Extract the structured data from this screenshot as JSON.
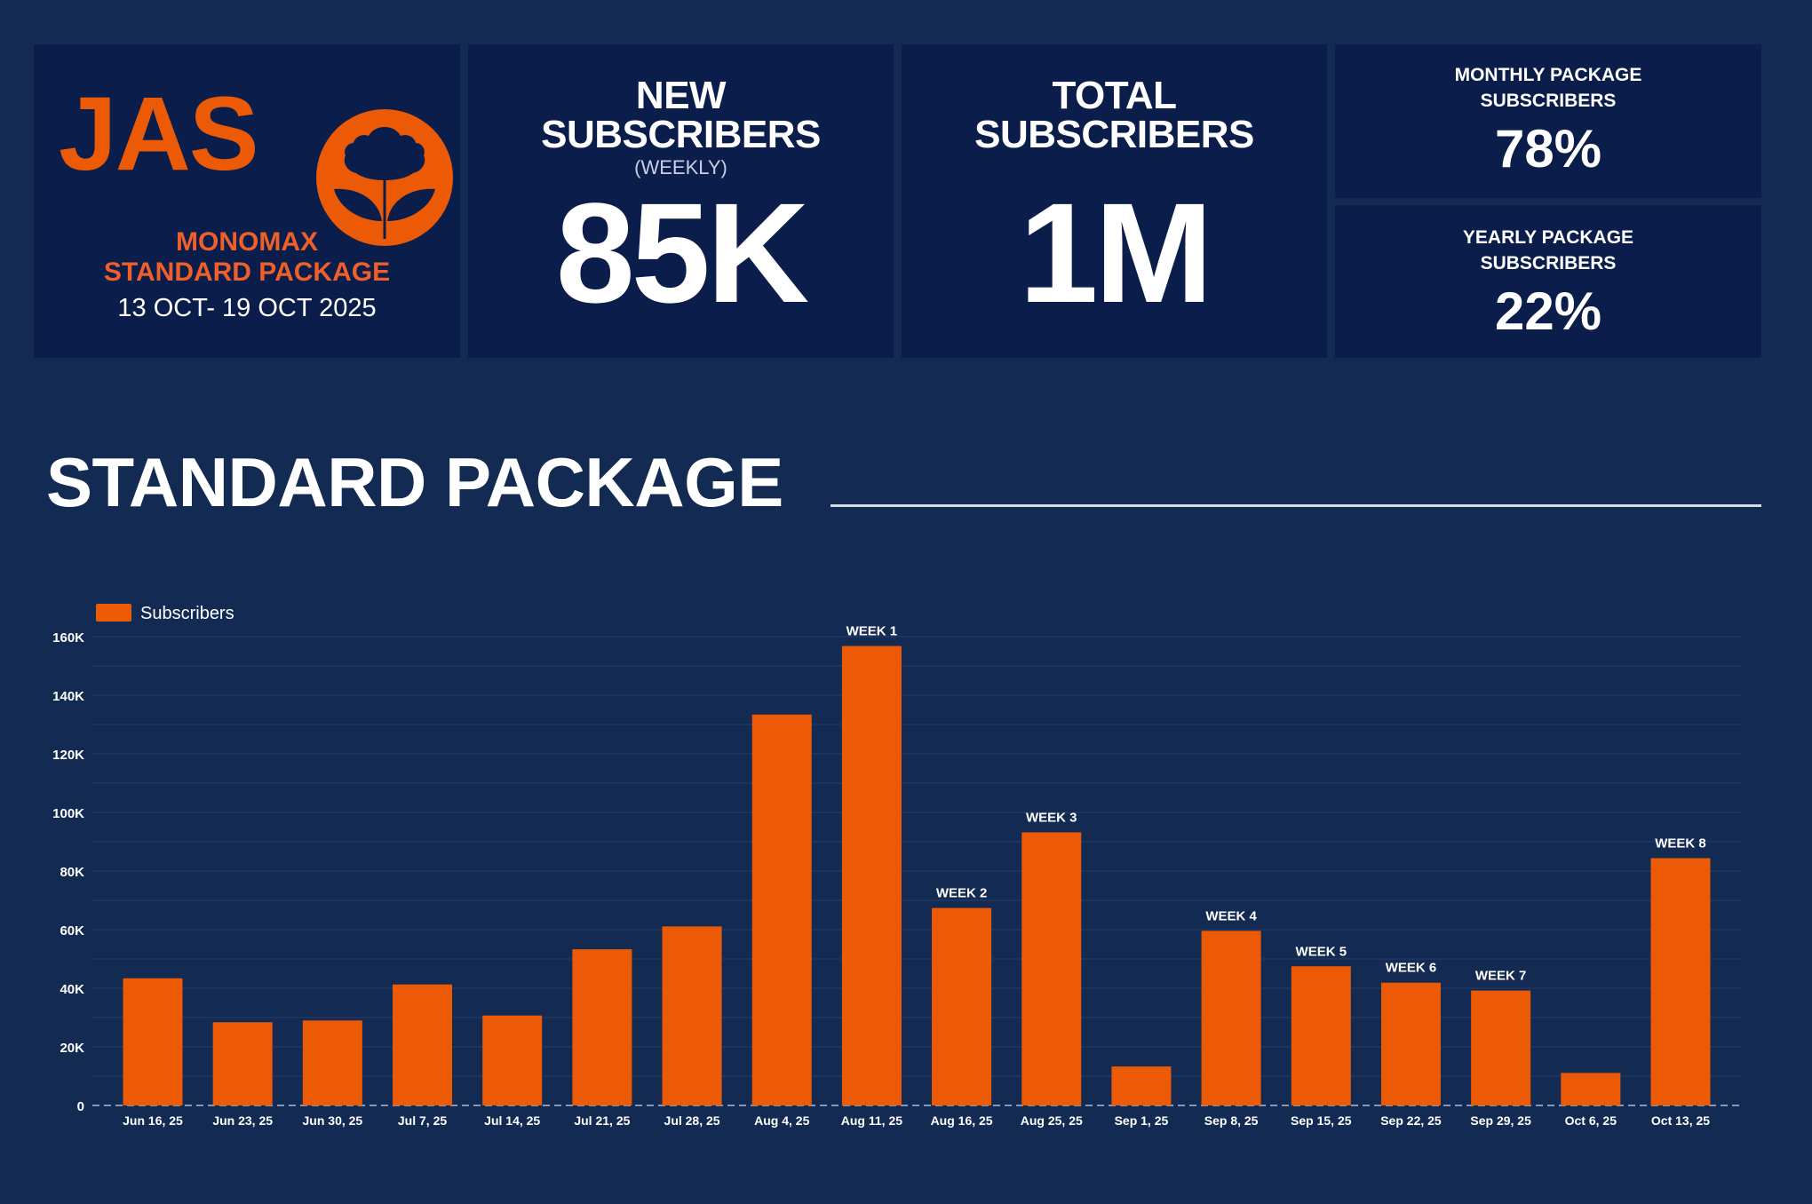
{
  "brand": {
    "logo_text": "JAS",
    "product": "MONOMAX",
    "package": "STANDARD PACKAGE",
    "date_range": "13 OCT- 19 OCT 2025",
    "accent_color": "#ec5a06"
  },
  "kpis": {
    "new_subscribers": {
      "title_line1": "NEW",
      "title_line2": "SUBSCRIBERS",
      "subtitle": "(WEEKLY)",
      "value": "85K"
    },
    "total_subscribers": {
      "title_line1": "TOTAL",
      "title_line2": "SUBSCRIBERS",
      "value": "1M"
    },
    "monthly": {
      "title_line1": "MONTHLY PACKAGE",
      "title_line2": "SUBSCRIBERS",
      "value": "78%"
    },
    "yearly": {
      "title_line1": "YEARLY PACKAGE",
      "title_line2": "SUBSCRIBERS",
      "value": "22%"
    }
  },
  "section": {
    "heading": "STANDARD PACKAGE"
  },
  "chart_data": {
    "type": "bar",
    "legend": {
      "entries": [
        "Subscribers"
      ],
      "placement": "top-left"
    },
    "categories": [
      "Jun 16, 25",
      "Jun 23, 25",
      "Jun 30, 25",
      "Jul 7, 25",
      "Jul 14, 25",
      "Jul 21, 25",
      "Jul 28, 25",
      "Aug 4, 25",
      "Aug 11, 25",
      "Aug 16, 25",
      "Aug 25, 25",
      "Sep 1, 25",
      "Sep 8, 25",
      "Sep 15, 25",
      "Sep 22, 25",
      "Sep 29, 25",
      "Oct 6, 25",
      "Oct 13, 25"
    ],
    "series": [
      {
        "name": "Subscribers",
        "color": "#ec5a06",
        "values": [
          43400,
          28400,
          29000,
          41300,
          30700,
          53300,
          61100,
          133400,
          156800,
          67400,
          93200,
          13300,
          59600,
          47500,
          41900,
          39200,
          11100,
          84400
        ]
      }
    ],
    "annotations": [
      "",
      "",
      "",
      "",
      "",
      "",
      "",
      "",
      "WEEK 1",
      "WEEK 2",
      "WEEK 3",
      "",
      "WEEK 4",
      "WEEK 5",
      "WEEK 6",
      "WEEK 7",
      "",
      "WEEK 8"
    ],
    "ylim": [
      0,
      160000
    ],
    "yticks": [
      0,
      20000,
      40000,
      60000,
      80000,
      100000,
      120000,
      140000,
      160000
    ],
    "ytick_labels": [
      "0",
      "20K",
      "40K",
      "60K",
      "80K",
      "100K",
      "120K",
      "140K",
      "160K"
    ],
    "grid": true,
    "xlabel": "",
    "ylabel": ""
  }
}
